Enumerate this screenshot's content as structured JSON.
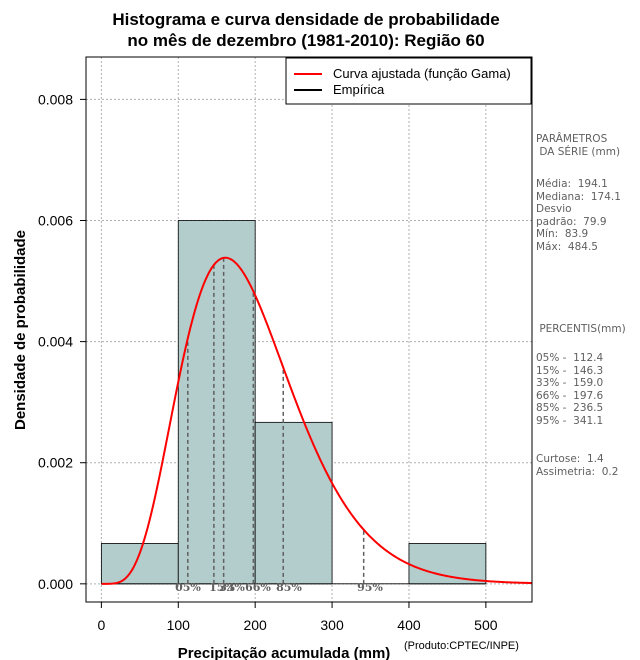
{
  "chart_data": {
    "type": "histogram",
    "title_line1": "Histograma e curva densidade de probabilidade",
    "title_line2": "no mês de dezembro (1981-2010): Região 60",
    "xlabel": "Precipitação acumulada (mm)",
    "ylabel": "Densidade de probabilidade",
    "xlim": [
      -20,
      560
    ],
    "ylim": [
      -0.0003,
      0.0087
    ],
    "x_ticks": [
      0,
      100,
      200,
      300,
      400,
      500
    ],
    "y_ticks": [
      0.0,
      0.002,
      0.004,
      0.006,
      0.008
    ],
    "y_tick_labels": [
      "0.000",
      "0.002",
      "0.004",
      "0.006",
      "0.008"
    ],
    "bins": [
      {
        "start": 0,
        "end": 100,
        "density": 0.000667
      },
      {
        "start": 100,
        "end": 200,
        "density": 0.006
      },
      {
        "start": 200,
        "end": 300,
        "density": 0.002667
      },
      {
        "start": 300,
        "end": 400,
        "density": 0
      },
      {
        "start": 400,
        "end": 500,
        "density": 0.000667
      }
    ],
    "gamma_fit": {
      "shape": 5.9,
      "scale": 32.9
    },
    "percentile_lines": [
      {
        "label": "05%",
        "value": 112.4
      },
      {
        "label": "15%",
        "value": 146.3
      },
      {
        "label": "33%",
        "value": 159.0
      },
      {
        "label": "66%",
        "value": 197.6
      },
      {
        "label": "85%",
        "value": 236.5
      },
      {
        "label": "95%",
        "value": 341.1
      }
    ],
    "legend": [
      {
        "label": "Curva ajustada (função Gama)",
        "color": "#ff0000"
      },
      {
        "label": "Empírica",
        "color": "#000000"
      }
    ],
    "legend_position": "top-right",
    "grid": true
  },
  "colors": {
    "bar_fill": "#b3cccc",
    "curve": "#ff0000",
    "percentile": "#606060"
  },
  "side_panel": {
    "params_title": "PARÂMETROS\n DA SÉRIE (mm)",
    "params_body": "Média:  194.1\nMediana:  174.1\nDesvio\npadrão:  79.9\nMín:  83.9\nMáx:  484.5",
    "percentis_title": " PERCENTIS(mm)",
    "percentis_body": "05% -  112.4\n15% -  146.3\n33% -  159.0\n66% -  197.6\n85% -  236.5\n95% -  341.1",
    "stats_body": "Curtose:  1.4\nAssimetria:  0.2"
  },
  "credit": "(Produto:CPTEC/INPE)"
}
